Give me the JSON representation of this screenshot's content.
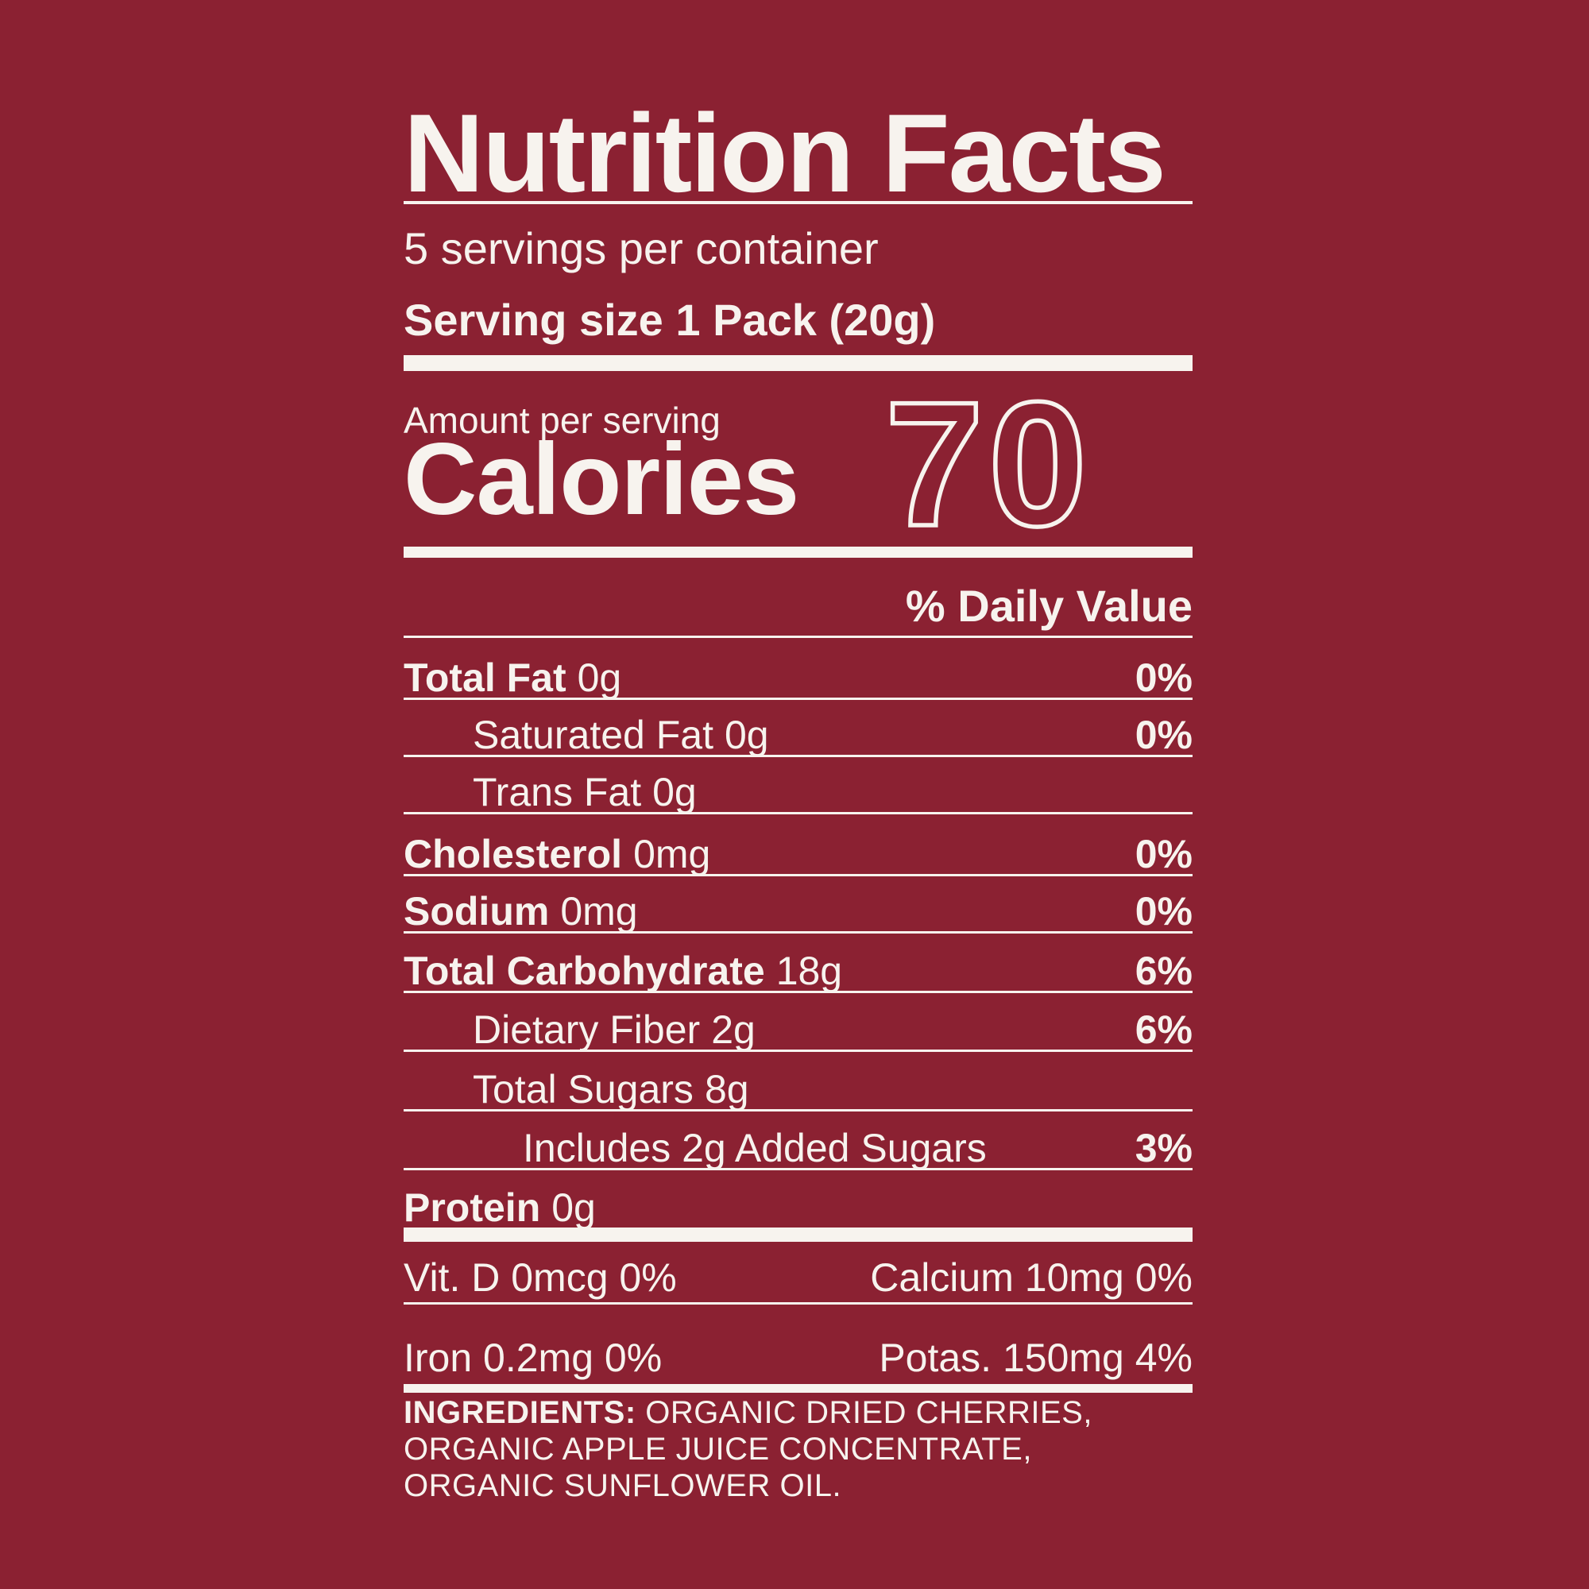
{
  "label": {
    "title": "Nutrition Facts",
    "servings_per_container": "5 servings per container",
    "serving_size": "Serving size 1 Pack (20g)",
    "amount_per_serving": "Amount per serving",
    "calories_label": "Calories",
    "calories_value": "70",
    "daily_value_header": "% Daily Value",
    "rows": [
      {
        "name": "Total Fat",
        "amount": "0g",
        "dv": "0%"
      },
      {
        "name": "Saturated Fat",
        "amount": "0g",
        "dv": "0%"
      },
      {
        "name": "Trans Fat",
        "amount": "0g",
        "dv": ""
      },
      {
        "name": "Cholesterol",
        "amount": "0mg",
        "dv": "0%"
      },
      {
        "name": "Sodium",
        "amount": "0mg",
        "dv": "0%"
      },
      {
        "name": "Total Carbohydrate",
        "amount": "18g",
        "dv": "6%"
      },
      {
        "name": "Dietary Fiber",
        "amount": "2g",
        "dv": "6%"
      },
      {
        "name": "Total Sugars",
        "amount": "8g",
        "dv": ""
      },
      {
        "name": "Includes 2g Added Sugars",
        "amount": "",
        "dv": "3%"
      },
      {
        "name": "Protein",
        "amount": "0g",
        "dv": ""
      }
    ],
    "micronutrients": {
      "vitamin_d": "Vit. D 0mcg 0%",
      "calcium": "Calcium 10mg 0%",
      "iron": "Iron 0.2mg 0%",
      "potassium": "Potas. 150mg 4%"
    },
    "ingredients": {
      "label": "INGREDIENTS:",
      "line1": " ORGANIC DRIED CHERRIES,",
      "line2": "ORGANIC APPLE JUICE CONCENTRATE,",
      "line3": "ORGANIC SUNFLOWER OIL."
    },
    "colors": {
      "background": "#8b2132",
      "text": "#f7f3ee"
    }
  }
}
